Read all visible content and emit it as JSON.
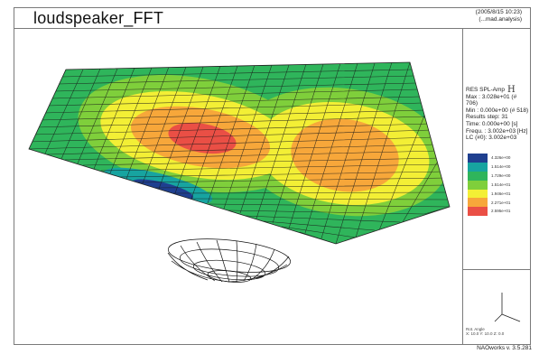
{
  "window": {
    "title": "loudspeaker_FFT",
    "date_line": "(2005/8/15   10:23)",
    "source_line": "(...mad.analysis)"
  },
  "legend": {
    "quantity": "RES SPL-Amp",
    "quantity_glyph": "H",
    "max": "Max : 3.028e+01 (# 706)",
    "min": "Min : 0.000e+00 (# 518)",
    "results_step": "Results step: 31",
    "time": "Time: 0.000e+00 [s]",
    "frequ": "Frequ. : 3.002e+03 [Hz]",
    "lc": "LC (#0): 3.002e+03",
    "colors": [
      "#1f3f8f",
      "#17a4a0",
      "#2fb55b",
      "#7fcf3b",
      "#f3ef35",
      "#f7a73a",
      "#ea4f45"
    ],
    "tick_labels": [
      "4.326e+00",
      "1.514e+00",
      "1.729e+00",
      "1.514e+01",
      "1.946e+01",
      "2.271e+01",
      "2.595e+01"
    ]
  },
  "triad": {
    "caption_line1": "Rot. Angle",
    "caption_line2": "X: 10.0  Y: 10.0  Z: 0.0"
  },
  "footer": {
    "version": "NAOworks v. 3.5.281"
  }
}
